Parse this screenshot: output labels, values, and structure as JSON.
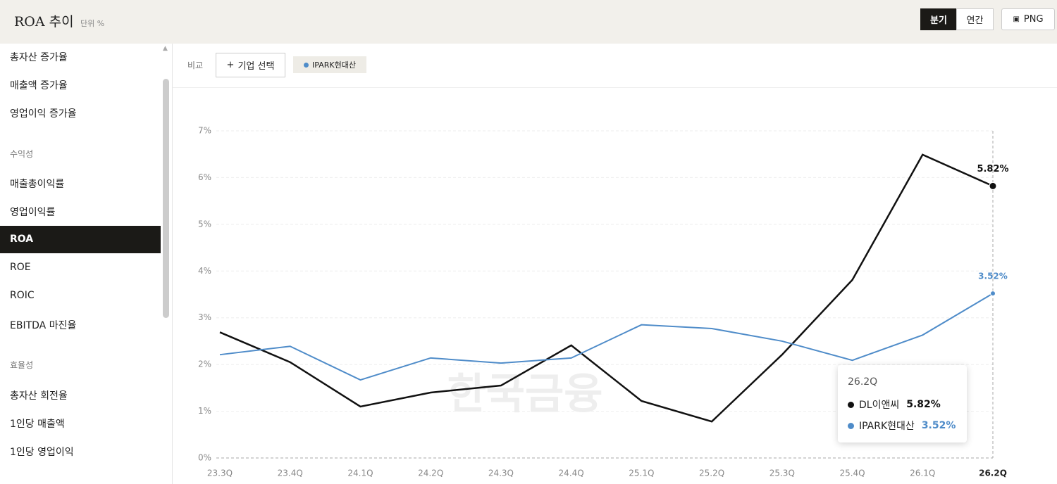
{
  "header": {
    "title": "ROA 추이",
    "unit": "단위 %",
    "buttons": [
      "분기",
      "연간"
    ],
    "export": "PNG"
  },
  "sidebar": {
    "items_top": [
      "총자산 증가율",
      "매출액 증가율",
      "영업이익 증가율"
    ],
    "group1": {
      "heading": "수익성",
      "items": [
        "매출총이익률",
        "영업이익률",
        "ROA",
        "ROE",
        "ROIC",
        "EBITDA 마진율"
      ]
    },
    "group2": {
      "heading": "효율성",
      "items": [
        "총자산 회전율",
        "1인당 매출액",
        "1인당 영업이익"
      ]
    }
  },
  "compare": {
    "label": "비교",
    "button": "기업 선택"
  },
  "watermark": "한국금융",
  "chart_data": {
    "type": "line",
    "categories": [
      "23.3Q",
      "23.4Q",
      "24.1Q",
      "24.2Q",
      "24.3Q",
      "24.4Q",
      "25.1Q",
      "25.2Q",
      "25.3Q",
      "25.4Q",
      "26.1Q",
      "26.2Q"
    ],
    "series": [
      {
        "name": "DL이앤씨",
        "color": "#111111",
        "values": [
          2.69,
          2.05,
          1.1,
          1.4,
          1.55,
          2.41,
          1.22,
          0.78,
          2.21,
          3.81,
          6.49,
          5.82
        ],
        "value_labels": [
          null,
          null,
          null,
          null,
          null,
          null,
          null,
          null,
          null,
          null,
          null,
          "5.82%"
        ]
      },
      {
        "name": "IPARK현대산",
        "color": "#4f8cc9",
        "values": [
          2.21,
          2.39,
          1.67,
          2.14,
          2.03,
          2.14,
          2.85,
          2.77,
          2.5,
          2.09,
          2.63,
          3.52
        ],
        "value_labels": [
          null,
          null,
          null,
          null,
          null,
          null,
          null,
          null,
          null,
          null,
          null,
          "3.52%"
        ]
      }
    ],
    "ylim": [
      0,
      7
    ],
    "yticks": [
      {
        "value": 0,
        "label": "0%"
      },
      {
        "value": 1,
        "label": "1%"
      },
      {
        "value": 2,
        "label": "2%"
      },
      {
        "value": 3,
        "label": "3%"
      },
      {
        "value": 4,
        "label": "4%"
      },
      {
        "value": 5,
        "label": "5%"
      },
      {
        "value": 6,
        "label": "6%"
      },
      {
        "value": 7,
        "label": "7%"
      }
    ],
    "grid": true
  }
}
